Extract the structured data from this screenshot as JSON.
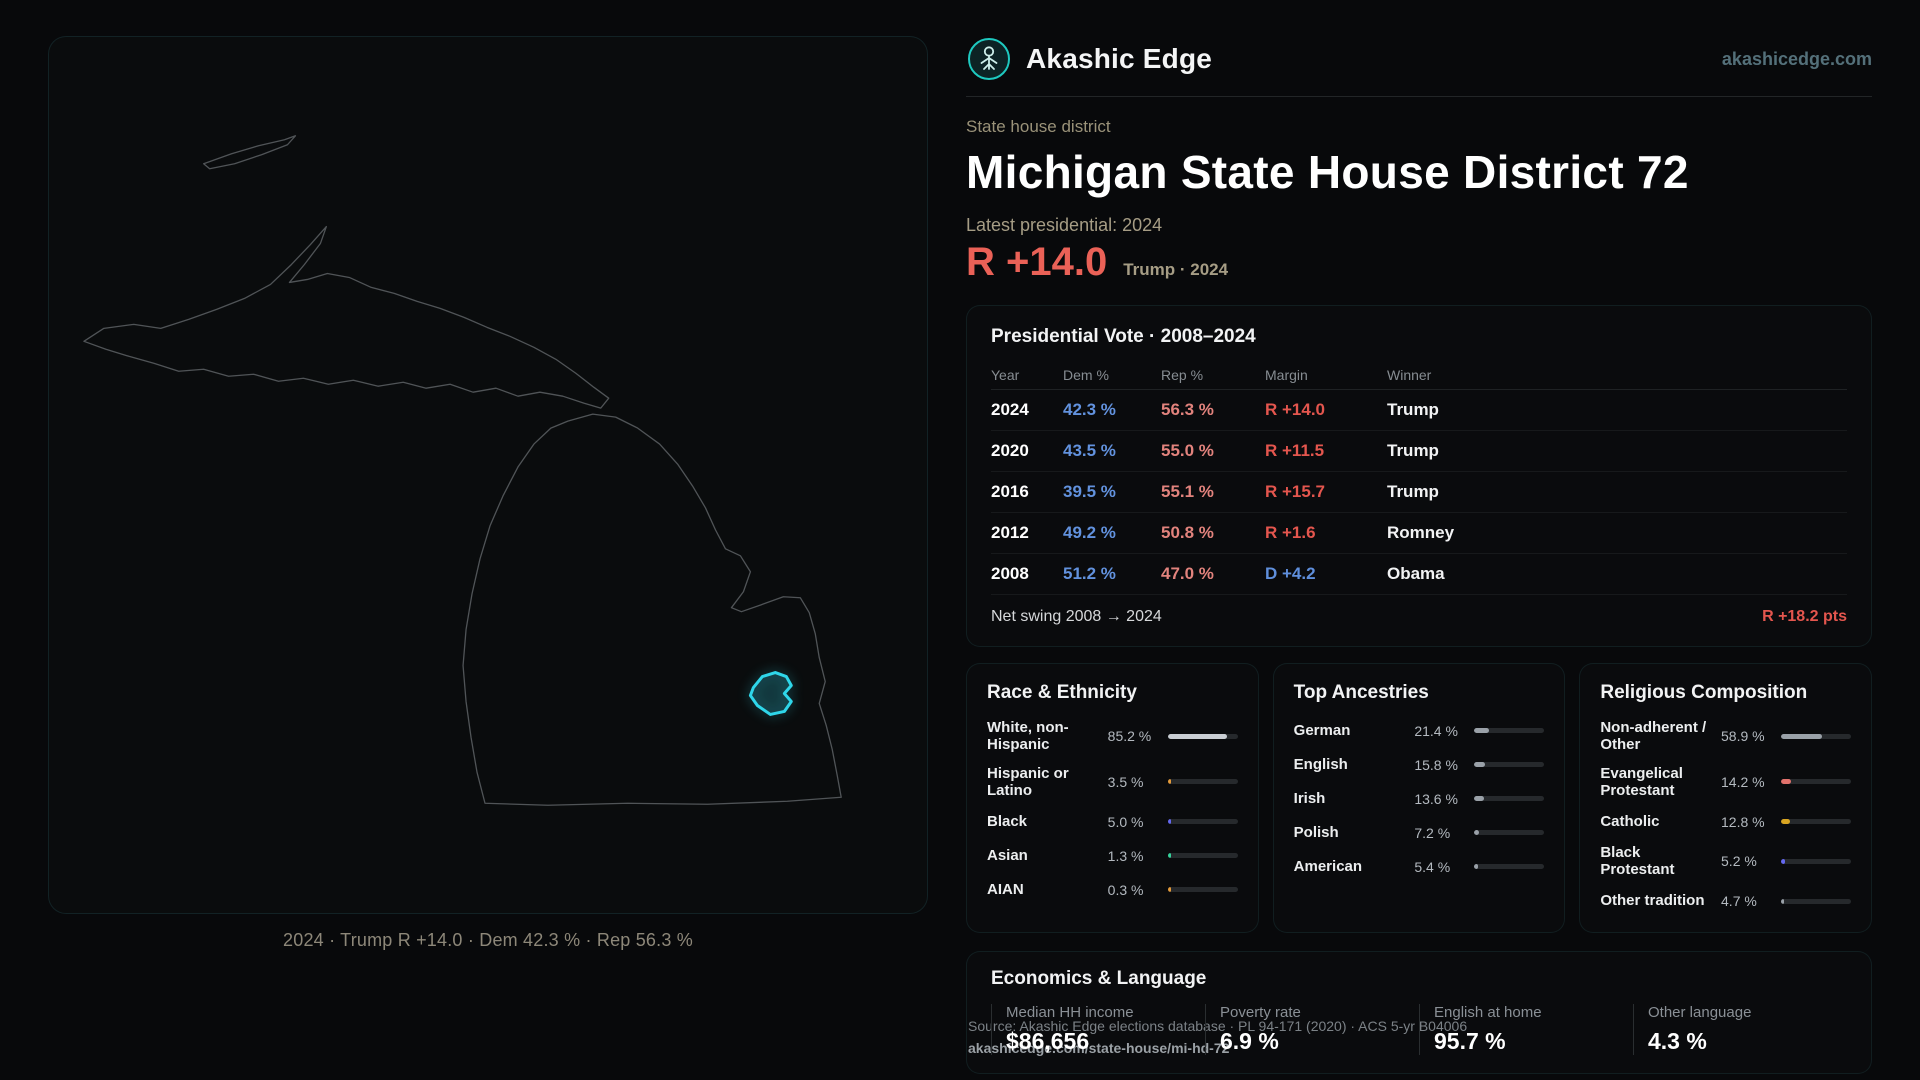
{
  "brand": {
    "name": "Akashic Edge",
    "domain": "akashicedge.com"
  },
  "page": {
    "kicker": "State house district",
    "title": "Michigan State House District 72",
    "latest_label": "Latest presidential: 2024",
    "headline_margin": "R +14.0",
    "headline_context": "Trump · 2024"
  },
  "map": {
    "caption": "2024 · Trump R +14.0 · Dem 42.3 % · Rep 56.3 %",
    "district_color": "#2fd6ea"
  },
  "presidential": {
    "title": "Presidential Vote · 2008–2024",
    "columns": [
      "Year",
      "Dem %",
      "Rep %",
      "Margin",
      "Winner"
    ],
    "rows": [
      {
        "year": "2024",
        "dem": "42.3 %",
        "rep": "56.3 %",
        "margin": "R +14.0",
        "party": "R",
        "winner": "Trump"
      },
      {
        "year": "2020",
        "dem": "43.5 %",
        "rep": "55.0 %",
        "margin": "R +11.5",
        "party": "R",
        "winner": "Trump"
      },
      {
        "year": "2016",
        "dem": "39.5 %",
        "rep": "55.1 %",
        "margin": "R +15.7",
        "party": "R",
        "winner": "Trump"
      },
      {
        "year": "2012",
        "dem": "49.2 %",
        "rep": "50.8 %",
        "margin": "R +1.6",
        "party": "R",
        "winner": "Romney"
      },
      {
        "year": "2008",
        "dem": "51.2 %",
        "rep": "47.0 %",
        "margin": "D +4.2",
        "party": "D",
        "winner": "Obama"
      }
    ],
    "net_swing_label": "Net swing 2008 → 2024",
    "net_swing_value": "R +18.2 pts"
  },
  "race": {
    "title": "Race & Ethnicity",
    "rows": [
      {
        "label": "White, non-Hispanic",
        "value": "85.2 %",
        "pct": 85.2,
        "color": "#c9ced3"
      },
      {
        "label": "Hispanic or Latino",
        "value": "3.5 %",
        "pct": 3.5,
        "color": "#e59b3a"
      },
      {
        "label": "Black",
        "value": "5.0 %",
        "pct": 5.0,
        "color": "#6468f0"
      },
      {
        "label": "Asian",
        "value": "1.3 %",
        "pct": 1.3,
        "color": "#35d39b"
      },
      {
        "label": "AIAN",
        "value": "0.3 %",
        "pct": 0.3,
        "color": "#e59b3a"
      }
    ]
  },
  "ancestries": {
    "title": "Top Ancestries",
    "rows": [
      {
        "label": "German",
        "value": "21.4 %",
        "pct": 21.4,
        "color": "#9aa1a8"
      },
      {
        "label": "English",
        "value": "15.8 %",
        "pct": 15.8,
        "color": "#9aa1a8"
      },
      {
        "label": "Irish",
        "value": "13.6 %",
        "pct": 13.6,
        "color": "#9aa1a8"
      },
      {
        "label": "Polish",
        "value": "7.2 %",
        "pct": 7.2,
        "color": "#9aa1a8"
      },
      {
        "label": "American",
        "value": "5.4 %",
        "pct": 5.4,
        "color": "#9aa1a8"
      }
    ]
  },
  "religion": {
    "title": "Religious Composition",
    "rows": [
      {
        "label": "Non-adherent / Other",
        "value": "58.9 %",
        "pct": 58.9,
        "color": "#9aa1a8"
      },
      {
        "label": "Evangelical Protestant",
        "value": "14.2 %",
        "pct": 14.2,
        "color": "#e2726c"
      },
      {
        "label": "Catholic",
        "value": "12.8 %",
        "pct": 12.8,
        "color": "#d9a521"
      },
      {
        "label": "Black Protestant",
        "value": "5.2 %",
        "pct": 5.2,
        "color": "#6468f0"
      },
      {
        "label": "Other tradition",
        "value": "4.7 %",
        "pct": 4.7,
        "color": "#9aa1a8"
      }
    ]
  },
  "economics": {
    "title": "Economics & Language",
    "stats": [
      {
        "label": "Median HH income",
        "value": "$86,656"
      },
      {
        "label": "Poverty rate",
        "value": "6.9 %"
      },
      {
        "label": "English at home",
        "value": "95.7 %"
      },
      {
        "label": "Other language",
        "value": "4.3 %"
      }
    ]
  },
  "footer": {
    "source_line": "Source: Akashic Edge elections database · PL 94-171 (2020) · ACS 5-yr B04006",
    "permalink": "akashicedge.com/state-house/mi-hd-72"
  },
  "colors": {
    "background": "#08090b",
    "accent_red": "#e4564e",
    "accent_blue": "#5f8fdc",
    "accent_teal": "#2fd6ea",
    "muted_tan": "#a69d85"
  },
  "chart_data": [
    {
      "type": "table",
      "title": "Presidential Vote · 2008–2024",
      "columns": [
        "Year",
        "Dem %",
        "Rep %",
        "Margin",
        "Winner"
      ],
      "rows": [
        [
          2024,
          42.3,
          56.3,
          "R +14.0",
          "Trump"
        ],
        [
          2020,
          43.5,
          55.0,
          "R +11.5",
          "Trump"
        ],
        [
          2016,
          39.5,
          55.1,
          "R +15.7",
          "Trump"
        ],
        [
          2012,
          49.2,
          50.8,
          "R +1.6",
          "Romney"
        ],
        [
          2008,
          51.2,
          47.0,
          "D +4.2",
          "Obama"
        ]
      ],
      "footer": {
        "label": "Net swing 2008 → 2024",
        "value": "R +18.2 pts"
      }
    },
    {
      "type": "bar",
      "title": "Race & Ethnicity",
      "categories": [
        "White, non-Hispanic",
        "Hispanic or Latino",
        "Black",
        "Asian",
        "AIAN"
      ],
      "values": [
        85.2,
        3.5,
        5.0,
        1.3,
        0.3
      ],
      "xlabel": "",
      "ylabel": "Percent",
      "xlim": [
        0,
        100
      ],
      "unit": "%"
    },
    {
      "type": "bar",
      "title": "Top Ancestries",
      "categories": [
        "German",
        "English",
        "Irish",
        "Polish",
        "American"
      ],
      "values": [
        21.4,
        15.8,
        13.6,
        7.2,
        5.4
      ],
      "xlabel": "",
      "ylabel": "Percent",
      "xlim": [
        0,
        100
      ],
      "unit": "%"
    },
    {
      "type": "bar",
      "title": "Religious Composition",
      "categories": [
        "Non-adherent / Other",
        "Evangelical Protestant",
        "Catholic",
        "Black Protestant",
        "Other tradition"
      ],
      "values": [
        58.9,
        14.2,
        12.8,
        5.2,
        4.7
      ],
      "xlabel": "",
      "ylabel": "Percent",
      "xlim": [
        0,
        100
      ],
      "unit": "%"
    },
    {
      "type": "table",
      "title": "Economics & Language",
      "columns": [
        "Median HH income",
        "Poverty rate",
        "English at home",
        "Other language"
      ],
      "rows": [
        [
          "$86,656",
          "6.9 %",
          "95.7 %",
          "4.3 %"
        ]
      ]
    }
  ]
}
